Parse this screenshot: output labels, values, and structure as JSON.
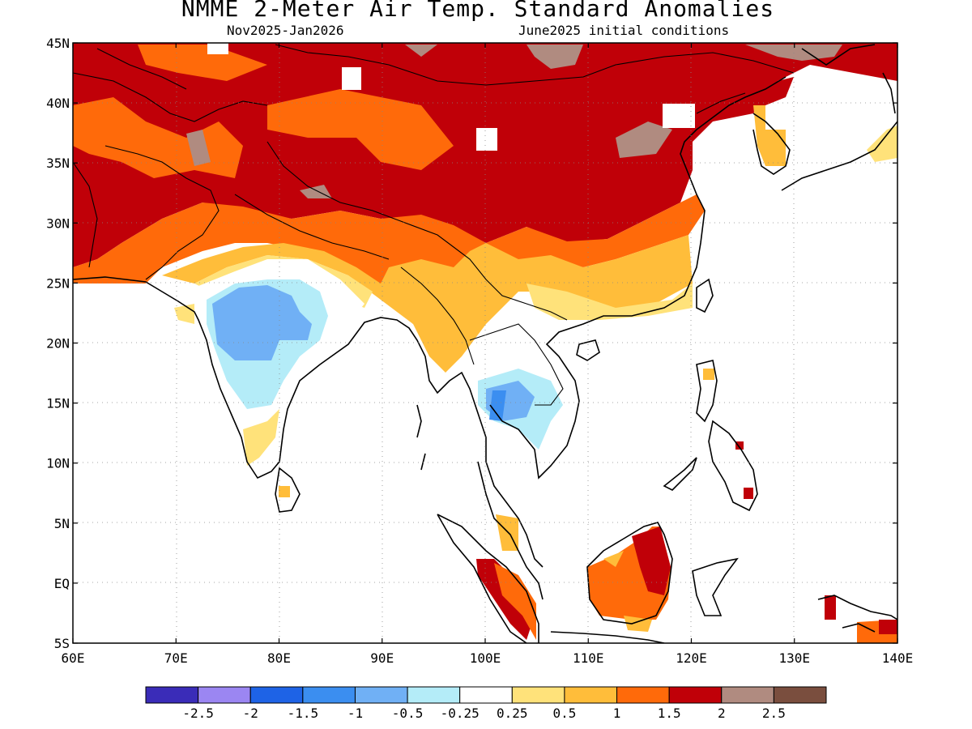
{
  "title": "NMME 2-Meter Air Temp. Standard Anomalies",
  "subtitle_left": "Nov2025-Jan2026",
  "subtitle_right": "June2025 initial conditions",
  "lat_labels": [
    "45N",
    "40N",
    "35N",
    "30N",
    "25N",
    "20N",
    "15N",
    "10N",
    "5N",
    "EQ",
    "5S"
  ],
  "lon_labels": [
    "60E",
    "70E",
    "80E",
    "90E",
    "100E",
    "110E",
    "120E",
    "130E",
    "140E"
  ],
  "colorbar": {
    "colors": [
      "#3a2cb8",
      "#9b86f2",
      "#1e63e6",
      "#3b8ef0",
      "#70b0f5",
      "#b4ecf8",
      "#ffffff",
      "#ffe27a",
      "#ffbd3a",
      "#ff6a0a",
      "#c00008",
      "#b08b80",
      "#7a4e3e"
    ],
    "labels": [
      "-2.5",
      "-2",
      "-1.5",
      "-1",
      "-0.5",
      "-0.25",
      "0.25",
      "0.5",
      "1",
      "1.5",
      "2",
      "2.5"
    ]
  },
  "colors": {
    "dark_red": "#c00008",
    "orange": "#ff6a0a",
    "light_orange": "#ffbd3a",
    "yellow": "#ffe27a",
    "tan": "#b08b80",
    "light_blue": "#b4ecf8",
    "blue": "#70b0f5",
    "mid_blue": "#3b8ef0"
  },
  "chart_data": {
    "type": "heatmap",
    "title": "NMME 2-Meter Air Temp. Standard Anomalies",
    "subtitle": [
      "Nov2025-Jan2026",
      "June2025 initial conditions"
    ],
    "x_range": [
      60,
      140
    ],
    "y_range": [
      -5,
      45
    ],
    "x_ticks": [
      "60E",
      "70E",
      "80E",
      "90E",
      "100E",
      "110E",
      "120E",
      "130E",
      "140E"
    ],
    "y_ticks": [
      "45N",
      "40N",
      "35N",
      "30N",
      "25N",
      "20N",
      "15N",
      "10N",
      "5N",
      "EQ",
      "5S"
    ],
    "bins": [
      -2.5,
      -2,
      -1.5,
      -1,
      -0.5,
      -0.25,
      0.25,
      0.5,
      1,
      1.5,
      2,
      2.5
    ],
    "regions": [
      {
        "area": "Northern China / Mongolia / Central Asia",
        "level": 2
      },
      {
        "area": "Tibetan Plateau / Southern China",
        "level": 1.5
      },
      {
        "area": "Central India",
        "level": -1
      },
      {
        "area": "Northern Thailand",
        "level": -1
      },
      {
        "area": "Borneo",
        "level": 1.5
      }
    ]
  }
}
